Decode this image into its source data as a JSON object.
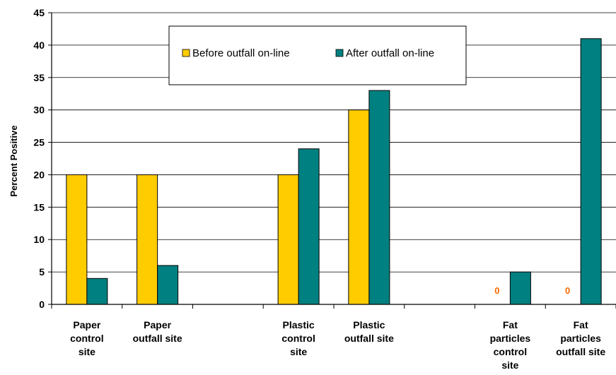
{
  "chart_data": {
    "type": "bar",
    "ylabel": "Percent Positive",
    "ylim": [
      0,
      45
    ],
    "yticks": [
      0,
      5,
      10,
      15,
      20,
      25,
      30,
      35,
      40,
      45
    ],
    "grid": true,
    "legend_position": "top-center",
    "categories": [
      [
        "Paper",
        "control",
        "site"
      ],
      [
        "Paper",
        "outfall site"
      ],
      [],
      [
        "Plastic",
        "control",
        "site"
      ],
      [
        "Plastic",
        "outfall site"
      ],
      [],
      [
        "Fat",
        "particles",
        "control",
        "site"
      ],
      [
        "Fat",
        "particles",
        "outfall site"
      ]
    ],
    "series": [
      {
        "name": "Before outfall on-line",
        "color": "#ffcc00",
        "values": [
          20,
          20,
          null,
          20,
          30,
          null,
          0,
          0
        ],
        "zero_labels": [
          false,
          false,
          false,
          false,
          false,
          false,
          true,
          true
        ]
      },
      {
        "name": "After outfall on-line",
        "color": "#008080",
        "values": [
          4,
          6,
          null,
          24,
          33,
          null,
          5,
          41
        ]
      }
    ],
    "zero_label_text": "0",
    "zero_label_color": "#ff6600"
  }
}
